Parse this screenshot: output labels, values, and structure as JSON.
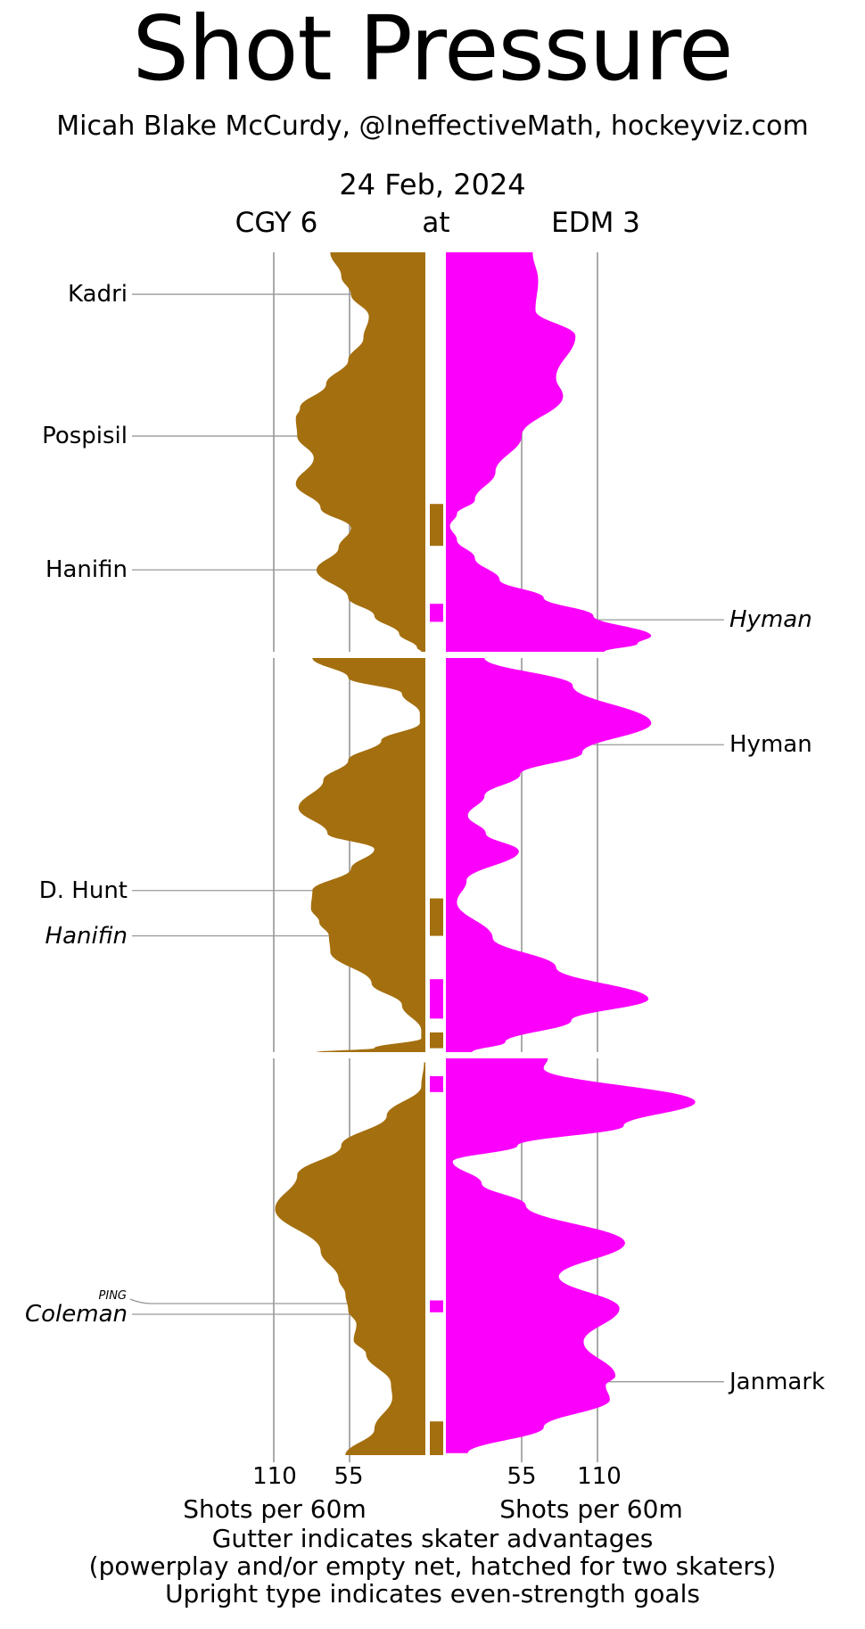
{
  "title": "Shot Pressure",
  "subtitle": "Micah Blake McCurdy, @IneffectiveMath, hockeyviz.com",
  "header": {
    "date": "24 Feb, 2024",
    "at_label": "at",
    "away_label": "CGY 6",
    "home_label": "EDM 3"
  },
  "away": {
    "team": "CGY",
    "score": 6
  },
  "home": {
    "team": "EDM",
    "score": 3
  },
  "axis": {
    "left_ticks": [
      "110",
      "55"
    ],
    "right_ticks": [
      "55",
      "110"
    ],
    "left_axis_label": "Shots per 60m",
    "right_axis_label": "Shots per 60m"
  },
  "footer": {
    "line1": "Gutter indicates skater advantages",
    "line2": "(powerplay and/or empty net, hatched for two skaters)",
    "line3": "Upright type indicates even-strength goals"
  },
  "colors": {
    "away": "#A46F0F",
    "home": "#FB00FB",
    "grid": "#ABABAB",
    "callout": "#999999",
    "text": "#000000",
    "background": "#FFFFFF"
  },
  "chart_data": {
    "type": "area",
    "subtype": "bidirectional shot-pressure timeline (time flows downward, 3 periods of 20 minutes)",
    "x_units": "shots per 60 minutes",
    "gridlines_shots_per_60": [
      55,
      110
    ],
    "xlim_each_side": [
      0,
      185
    ],
    "periods": [
      {
        "period": 1,
        "away_profile": [
          [
            0,
            69
          ],
          [
            1.2,
            61
          ],
          [
            2.1,
            54
          ],
          [
            3.2,
            41
          ],
          [
            4.3,
            45
          ],
          [
            5.4,
            56
          ],
          [
            6.6,
            72
          ],
          [
            7.8,
            91
          ],
          [
            8.3,
            94
          ],
          [
            9.2,
            93
          ],
          [
            10.3,
            81
          ],
          [
            11.6,
            94
          ],
          [
            12.8,
            76
          ],
          [
            13.8,
            54
          ],
          [
            14.8,
            63
          ],
          [
            15.9,
            79
          ],
          [
            17.3,
            56
          ],
          [
            18.2,
            37
          ],
          [
            19.1,
            19
          ],
          [
            19.8,
            6
          ],
          [
            20,
            3
          ]
        ],
        "home_profile": [
          [
            0,
            63
          ],
          [
            1.4,
            67
          ],
          [
            2.9,
            65
          ],
          [
            4.2,
            94
          ],
          [
            6.3,
            80
          ],
          [
            7.2,
            85
          ],
          [
            9.2,
            55
          ],
          [
            11,
            36
          ],
          [
            12.4,
            21
          ],
          [
            13.1,
            8
          ],
          [
            13.7,
            3
          ],
          [
            14.4,
            8
          ],
          [
            15.3,
            21
          ],
          [
            16.4,
            39
          ],
          [
            17.3,
            71
          ],
          [
            18.2,
            107
          ],
          [
            19.2,
            149
          ],
          [
            19.6,
            139
          ],
          [
            20,
            115
          ]
        ]
      },
      {
        "period": 2,
        "away_profile": [
          [
            0,
            82
          ],
          [
            1,
            56
          ],
          [
            1.8,
            17
          ],
          [
            2.8,
            4
          ],
          [
            3.3,
            4
          ],
          [
            4.2,
            32
          ],
          [
            5.2,
            56
          ],
          [
            6.2,
            74
          ],
          [
            7.6,
            92
          ],
          [
            8.9,
            71
          ],
          [
            9.7,
            37
          ],
          [
            10.7,
            54
          ],
          [
            11.8,
            82
          ],
          [
            12.7,
            83
          ],
          [
            13.4,
            77
          ],
          [
            14.1,
            70
          ],
          [
            14.9,
            69
          ],
          [
            16.5,
            39
          ],
          [
            17.6,
            17
          ],
          [
            18.9,
            3
          ],
          [
            19.3,
            3
          ],
          [
            19.8,
            37
          ],
          [
            20,
            79
          ]
        ],
        "home_profile": [
          [
            0,
            28
          ],
          [
            1.4,
            92
          ],
          [
            3.3,
            149
          ],
          [
            4.8,
            99
          ],
          [
            5.9,
            54
          ],
          [
            7,
            28
          ],
          [
            8,
            16
          ],
          [
            8.9,
            29
          ],
          [
            9.8,
            53
          ],
          [
            11.3,
            15
          ],
          [
            12.4,
            8
          ],
          [
            14.2,
            34
          ],
          [
            15.7,
            80
          ],
          [
            17.3,
            147
          ],
          [
            18.4,
            91
          ],
          [
            19.5,
            43
          ],
          [
            20,
            19
          ]
        ]
      },
      {
        "period": 3,
        "away_profile": [
          [
            0.2,
            1
          ],
          [
            1.4,
            3
          ],
          [
            2.9,
            28
          ],
          [
            4.4,
            61
          ],
          [
            5.9,
            93
          ],
          [
            7.6,
            109
          ],
          [
            9.7,
            76
          ],
          [
            11.1,
            63
          ],
          [
            11.9,
            58
          ],
          [
            12.7,
            56
          ],
          [
            13.4,
            50
          ],
          [
            14.2,
            52
          ],
          [
            14.9,
            43
          ],
          [
            16.4,
            25
          ],
          [
            17.1,
            24
          ],
          [
            18.7,
            37
          ],
          [
            20,
            58
          ]
        ],
        "home_profile": [
          [
            0,
            74
          ],
          [
            0.5,
            71
          ],
          [
            2.2,
            181
          ],
          [
            3.4,
            129
          ],
          [
            4.4,
            52
          ],
          [
            5.2,
            5
          ],
          [
            6.3,
            26
          ],
          [
            7.4,
            58
          ],
          [
            9.3,
            130
          ],
          [
            11,
            82
          ],
          [
            12.6,
            126
          ],
          [
            14.3,
            100
          ],
          [
            16,
            123
          ],
          [
            16.5,
            116
          ],
          [
            17.2,
            119
          ],
          [
            18.6,
            71
          ],
          [
            19.9,
            16
          ]
        ]
      }
    ],
    "advantages": [
      {
        "period": 1,
        "team": "CGY",
        "t_start": 12.6,
        "t_end": 14.7,
        "two_skaters": false
      },
      {
        "period": 1,
        "team": "EDM",
        "t_start": 17.6,
        "t_end": 18.5,
        "two_skaters": false
      },
      {
        "period": 2,
        "team": "CGY",
        "t_start": 12.2,
        "t_end": 14.1,
        "two_skaters": false
      },
      {
        "period": 2,
        "team": "EDM",
        "t_start": 16.3,
        "t_end": 18.3,
        "two_skaters": false
      },
      {
        "period": 2,
        "team": "CGY",
        "t_start": 19.0,
        "t_end": 19.8,
        "two_skaters": false
      },
      {
        "period": 3,
        "team": "EDM",
        "t_start": 0.9,
        "t_end": 1.7,
        "two_skaters": false
      },
      {
        "period": 3,
        "team": "EDM",
        "t_start": 12.2,
        "t_end": 12.8,
        "two_skaters": false
      },
      {
        "period": 3,
        "team": "CGY",
        "t_start": 18.3,
        "t_end": 20,
        "two_skaters": false
      }
    ],
    "goals": [
      {
        "scorer": "Kadri",
        "team": "CGY",
        "period": 1,
        "t": 2.1,
        "even_strength": true
      },
      {
        "scorer": "Pospisil",
        "team": "CGY",
        "period": 1,
        "t": 9.2,
        "even_strength": true
      },
      {
        "scorer": "Hanifin",
        "team": "CGY",
        "period": 1,
        "t": 15.9,
        "even_strength": true
      },
      {
        "scorer": "Hyman",
        "team": "EDM",
        "period": 1,
        "t": 18.4,
        "even_strength": false
      },
      {
        "scorer": "Hyman",
        "team": "EDM",
        "period": 2,
        "t": 4.4,
        "even_strength": true
      },
      {
        "scorer": "D. Hunt",
        "team": "CGY",
        "period": 2,
        "t": 11.8,
        "even_strength": true
      },
      {
        "scorer": "Hanifin",
        "team": "CGY",
        "period": 2,
        "t": 14.1,
        "even_strength": false
      },
      {
        "scorer": "Coleman",
        "team": "CGY",
        "period": 3,
        "t": 12.9,
        "even_strength": false,
        "note": "PING"
      },
      {
        "scorer": "Janmark",
        "team": "EDM",
        "period": 3,
        "t": 16.3,
        "even_strength": true
      }
    ]
  }
}
